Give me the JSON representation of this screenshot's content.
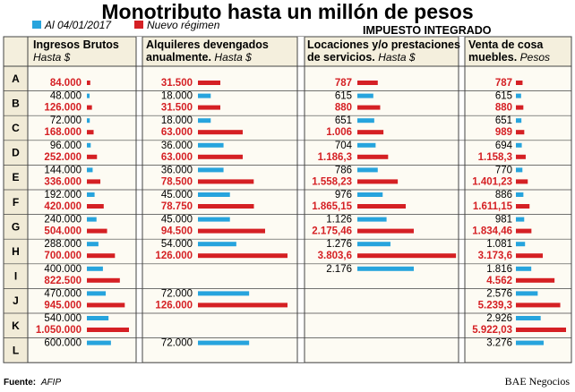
{
  "chart_data": {
    "type": "bar",
    "title": "Monotributo hasta un millón de pesos",
    "legend": [
      "Al 04/01/2017",
      "Nuevo régimen"
    ],
    "colors": {
      "old": "#27a4dd",
      "new": "#d52024"
    },
    "subtitle": "IMPUESTO INTEGRADO",
    "categories": [
      "A",
      "B",
      "C",
      "D",
      "E",
      "F",
      "G",
      "H",
      "I",
      "J",
      "K",
      "L"
    ],
    "columns": [
      {
        "header": "Ingresos Brutos",
        "unit": "Hasta $",
        "old": [
          null,
          "48.000",
          "72.000",
          "96.000",
          "144.000",
          "192.000",
          "240.000",
          "288.000",
          "400.000",
          "470.000",
          "540.000",
          "600.000"
        ],
        "new": [
          "84.000",
          "126.000",
          "168.000",
          "252.000",
          "336.000",
          "420.000",
          "504.000",
          "700.000",
          "822.500",
          "945.000",
          "1.050.000",
          null
        ],
        "old_values": [
          null,
          48000,
          72000,
          96000,
          144000,
          192000,
          240000,
          288000,
          400000,
          470000,
          540000,
          600000
        ],
        "new_values": [
          84000,
          126000,
          168000,
          252000,
          336000,
          420000,
          504000,
          700000,
          822500,
          945000,
          1050000,
          null
        ]
      },
      {
        "header": "Alquileres devengados",
        "header2": "anualmente.",
        "unit": "Hasta $",
        "old": [
          null,
          "18.000",
          "18.000",
          "36.000",
          "36.000",
          "45.000",
          "45.000",
          "54.000",
          null,
          "72.000",
          null,
          "72.000"
        ],
        "new": [
          "31.500",
          "31.500",
          "63.000",
          "63.000",
          "78.500",
          "78.750",
          "94.500",
          "126.000",
          null,
          "126.000",
          null,
          null
        ],
        "old_values": [
          null,
          18000,
          18000,
          36000,
          36000,
          45000,
          45000,
          54000,
          null,
          72000,
          null,
          72000
        ],
        "new_values": [
          31500,
          31500,
          63000,
          63000,
          78500,
          78750,
          94500,
          126000,
          null,
          126000,
          null,
          null
        ]
      },
      {
        "header": "Locaciones y/o prestaciones",
        "header2": "de servicios.",
        "unit": "Hasta $",
        "old": [
          null,
          "615",
          "651",
          "704",
          "786",
          "976",
          "1.126",
          "1.276",
          "2.176",
          null,
          null,
          null
        ],
        "new": [
          "787",
          "880",
          "1.006",
          "1.186,3",
          "1.558,23",
          "1.865,15",
          "2.175,46",
          "3.803,6",
          null,
          null,
          null,
          null
        ],
        "old_values": [
          null,
          615,
          651,
          704,
          786,
          976,
          1126,
          1276,
          2176,
          null,
          null,
          null
        ],
        "new_values": [
          787,
          880,
          1006,
          1186.3,
          1558.23,
          1865.15,
          2175.46,
          3803.6,
          null,
          null,
          null,
          null
        ]
      },
      {
        "header": "Venta de cosa",
        "header2": "muebles.",
        "unit": "Pesos",
        "old": [
          null,
          "615",
          "651",
          "694",
          "770",
          "886",
          "981",
          "1.081",
          "1.816",
          "2.576",
          "2.926",
          "3.276"
        ],
        "new": [
          "787",
          "880",
          "989",
          "1.158,3",
          "1.401,23",
          "1.611,15",
          "1.834,46",
          "3.173,6",
          "4.562",
          "5.239,3",
          "5.922,03",
          null
        ],
        "old_values": [
          null,
          615,
          651,
          694,
          770,
          886,
          981,
          1081,
          1816,
          2576,
          2926,
          3276
        ],
        "new_values": [
          787,
          880,
          989,
          1158.3,
          1401.23,
          1611.15,
          1834.46,
          3173.6,
          4562,
          5239.3,
          5922.03,
          null
        ]
      }
    ]
  },
  "footer": {
    "source_label": "Fuente:",
    "source": "AFIP",
    "brand": "BAE Negocios"
  }
}
